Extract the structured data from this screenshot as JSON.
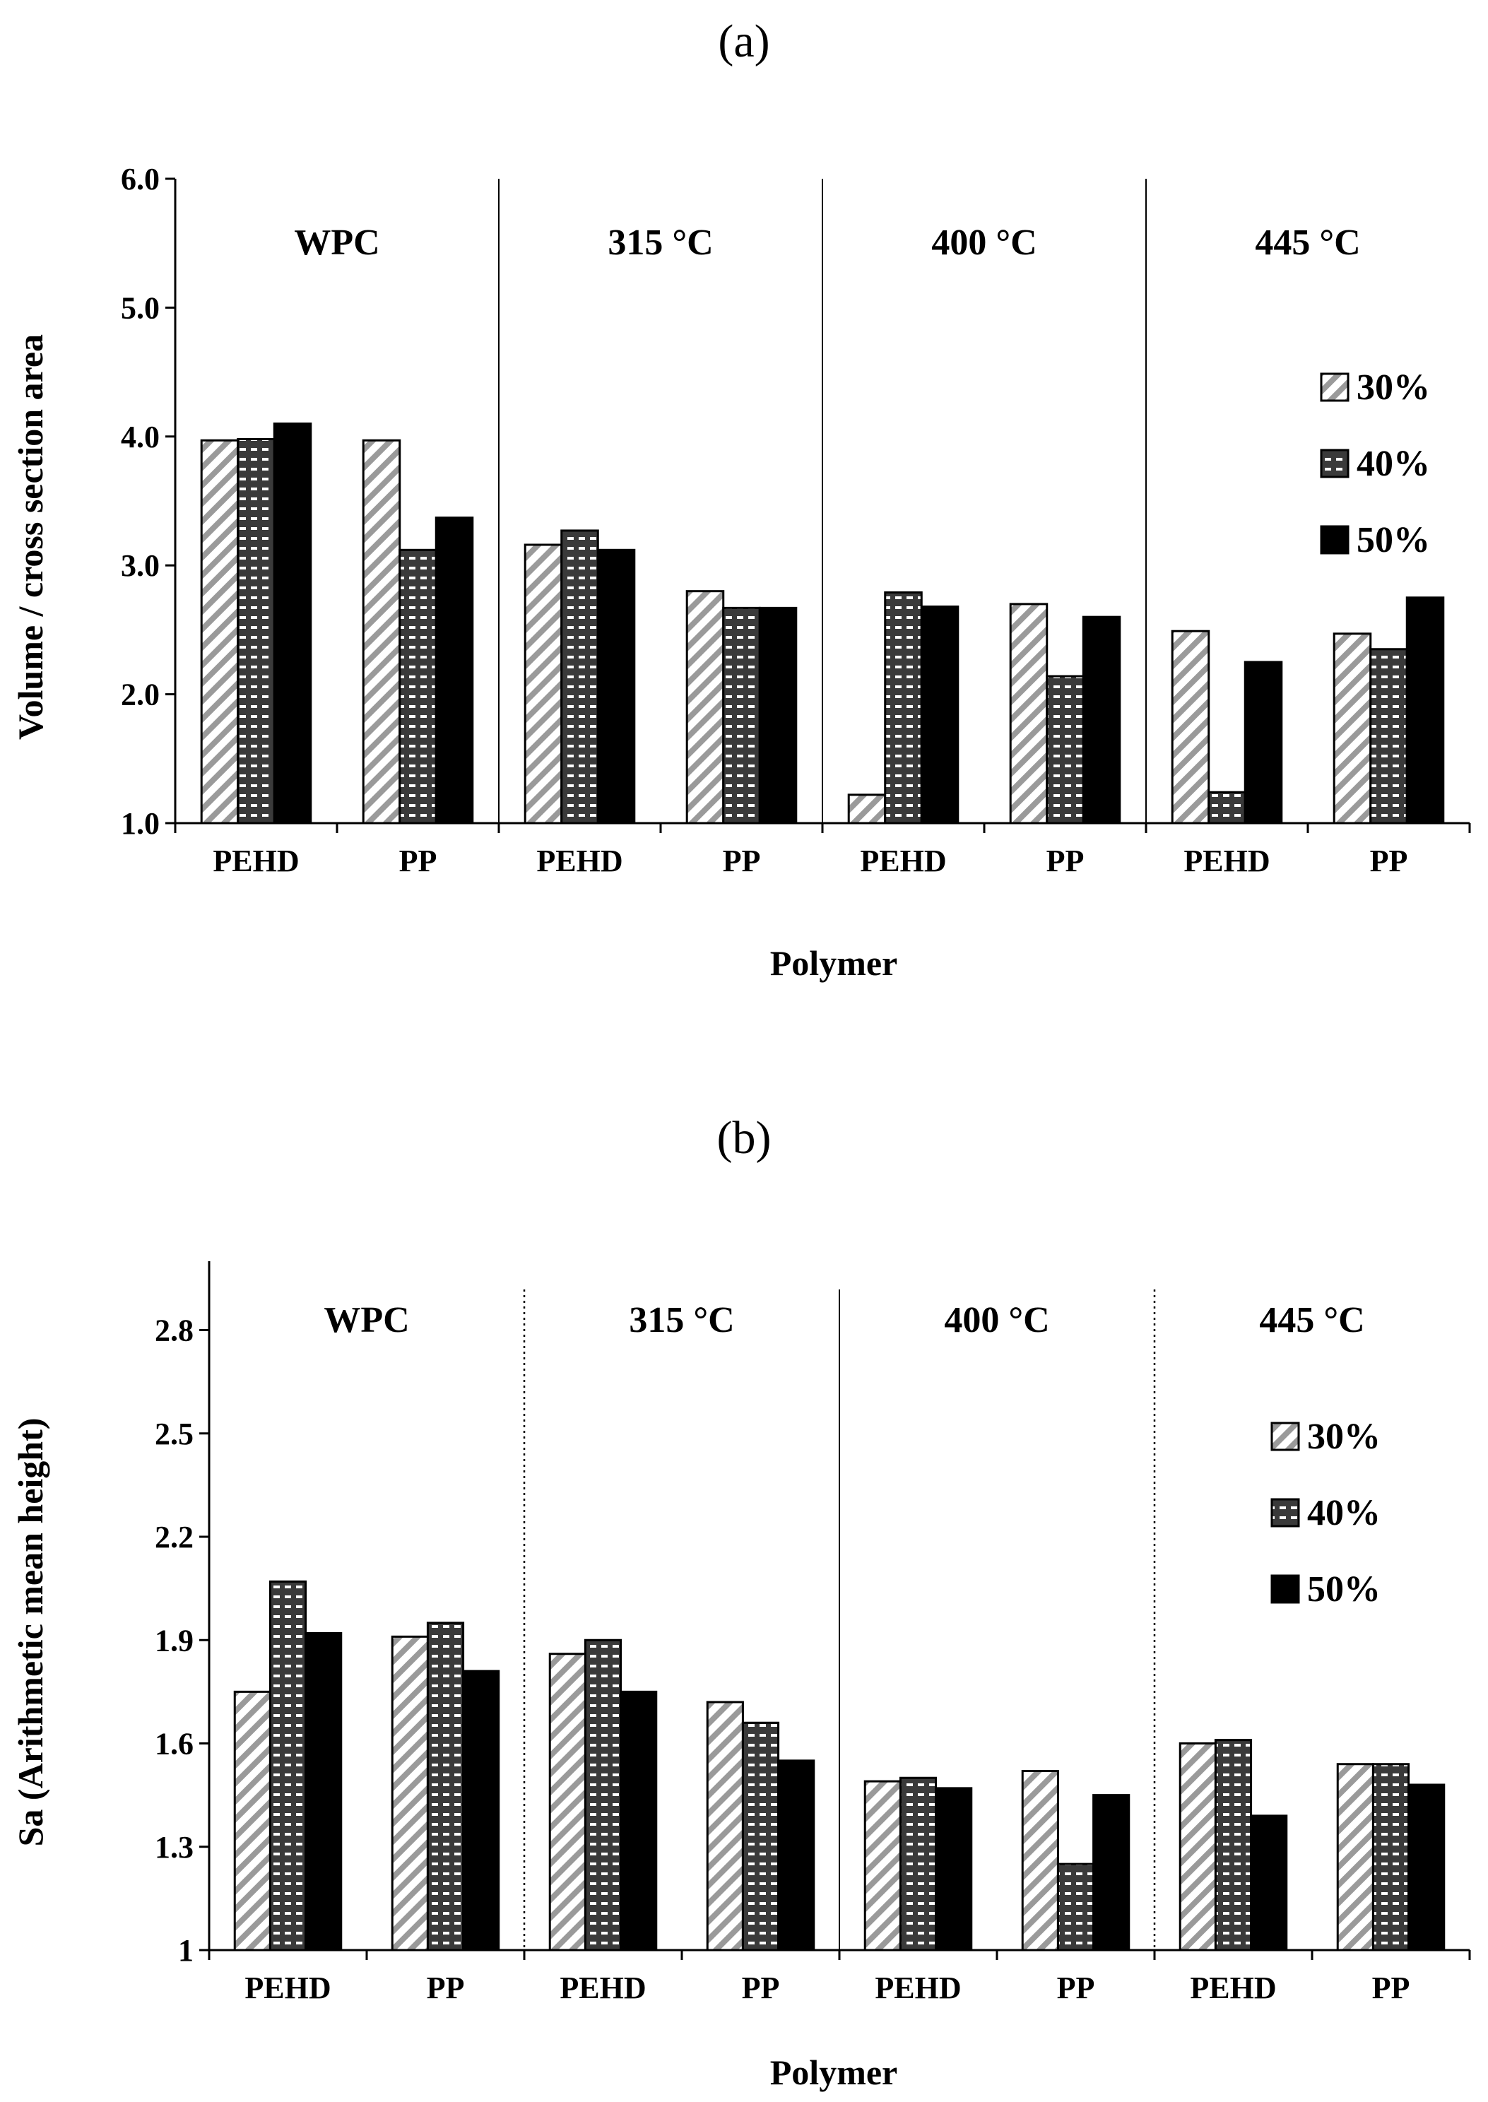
{
  "chart_data": [
    {
      "type": "bar",
      "panel_label": "(a)",
      "title": "",
      "xlabel": "Polymer",
      "ylabel": "Volume / cross section area",
      "ylim": [
        1.0,
        6.0
      ],
      "yticks": [
        "1.0",
        "2.0",
        "3.0",
        "4.0",
        "5.0",
        "6.0"
      ],
      "group_labels": [
        "WPC",
        "315 °C",
        "400 °C",
        "445 °C"
      ],
      "separator_style": "solid",
      "categories": [
        "PEHD",
        "PP",
        "PEHD",
        "PP",
        "PEHD",
        "PP",
        "PEHD",
        "PP"
      ],
      "series": [
        {
          "name": "30%",
          "pattern": "diagonal",
          "values": [
            3.97,
            3.97,
            3.16,
            2.8,
            1.22,
            2.7,
            2.49,
            2.47
          ]
        },
        {
          "name": "40%",
          "pattern": "dotted",
          "values": [
            3.98,
            3.12,
            3.27,
            2.67,
            2.79,
            2.14,
            1.24,
            2.35
          ]
        },
        {
          "name": "50%",
          "pattern": "solid",
          "values": [
            4.1,
            3.37,
            3.12,
            2.67,
            2.68,
            2.6,
            2.25,
            2.75
          ]
        }
      ],
      "legend": [
        "30%",
        "40%",
        "50%"
      ]
    },
    {
      "type": "bar",
      "panel_label": "(b)",
      "title": "",
      "xlabel": "Polymer",
      "ylabel": "Sa (Arithmetic mean height)",
      "ylim": [
        1.0,
        3.0
      ],
      "yticks": [
        "1",
        "1.3",
        "1.6",
        "1.9",
        "2.2",
        "2.5",
        "2.8"
      ],
      "group_labels": [
        "WPC",
        "315 °C",
        "400 °C",
        "445 °C"
      ],
      "separator_style": "mixed",
      "categories": [
        "PEHD",
        "PP",
        "PEHD",
        "PP",
        "PEHD",
        "PP",
        "PEHD",
        "PP"
      ],
      "series": [
        {
          "name": "30%",
          "pattern": "diagonal",
          "values": [
            1.75,
            1.91,
            1.86,
            1.72,
            1.49,
            1.52,
            1.6,
            1.54
          ]
        },
        {
          "name": "40%",
          "pattern": "dotted",
          "values": [
            2.07,
            1.95,
            1.9,
            1.66,
            1.5,
            1.25,
            1.61,
            1.54
          ]
        },
        {
          "name": "50%",
          "pattern": "solid",
          "values": [
            1.92,
            1.81,
            1.75,
            1.55,
            1.47,
            1.45,
            1.39,
            1.48
          ]
        }
      ],
      "legend": [
        "30%",
        "40%",
        "50%"
      ]
    }
  ]
}
